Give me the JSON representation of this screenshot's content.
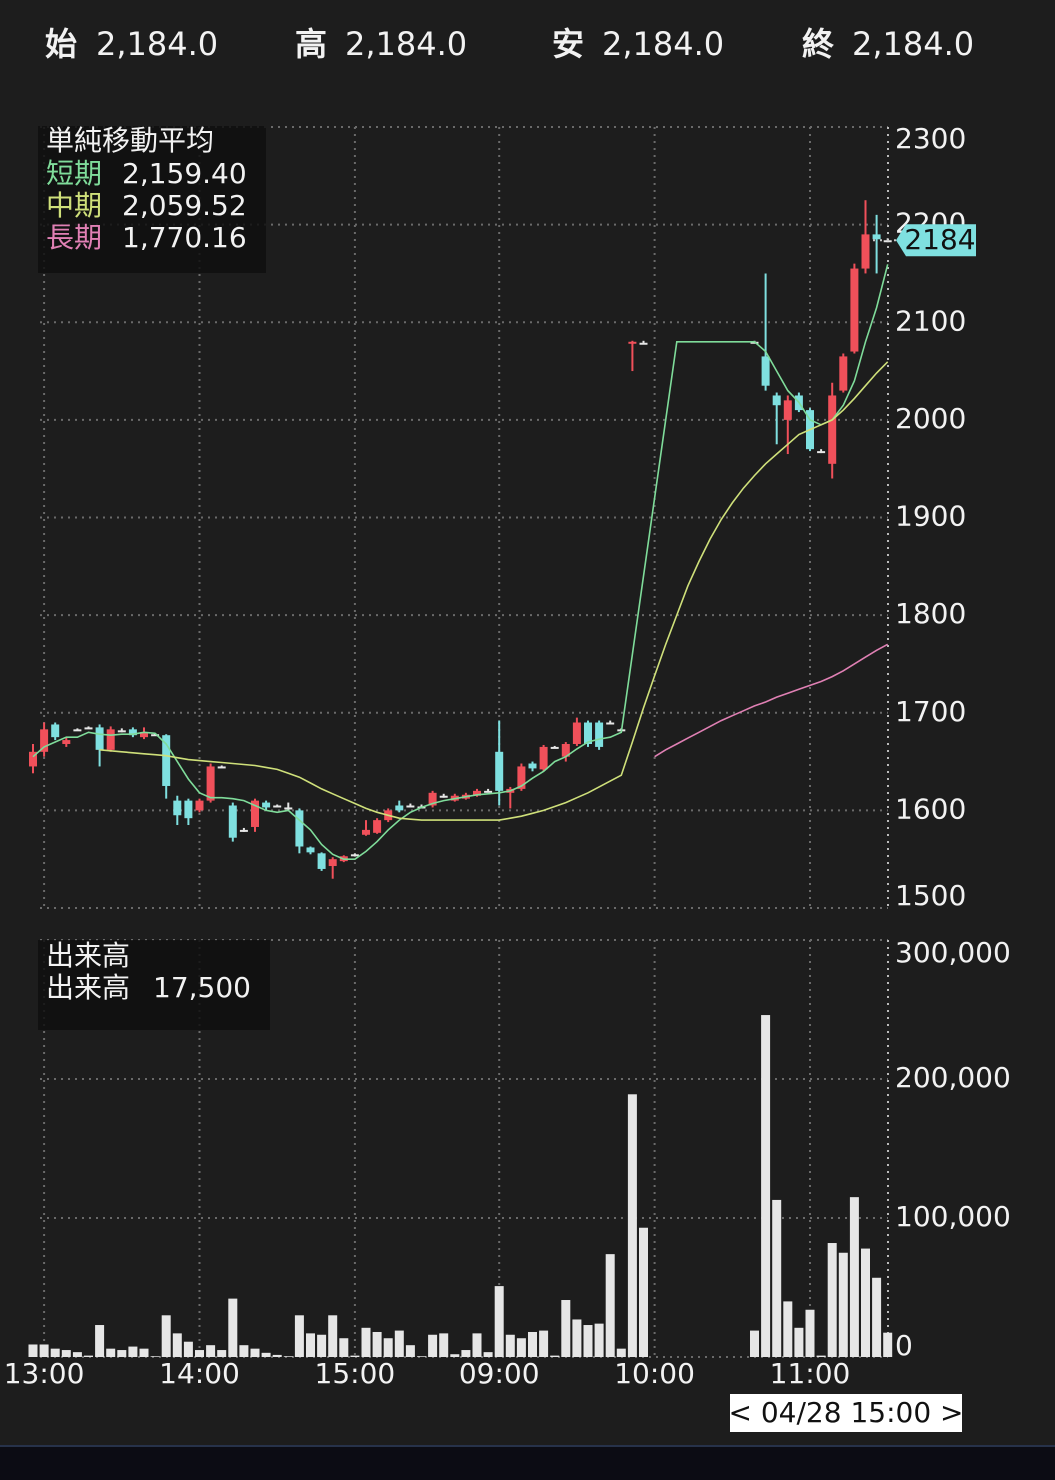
{
  "header": [
    {
      "label": "始",
      "value": "2,184.0"
    },
    {
      "label": "高",
      "value": "2,184.0"
    },
    {
      "label": "安",
      "value": "2,184.0"
    },
    {
      "label": "終",
      "value": "2,184.0"
    }
  ],
  "cursor_label": "< 04/28 15:00 >",
  "chart_data": [
    {
      "type": "candlestick",
      "title": "単純移動平均",
      "categories": [
        null,
        "13:00",
        null,
        null,
        null,
        null,
        null,
        null,
        null,
        null,
        null,
        null,
        null,
        null,
        null,
        "14:00",
        null,
        null,
        null,
        null,
        null,
        null,
        null,
        null,
        null,
        null,
        null,
        null,
        null,
        "15:00",
        null,
        null,
        null,
        null,
        null,
        null,
        null,
        null,
        null,
        null,
        null,
        null,
        "09:00",
        null,
        null,
        null,
        null,
        null,
        null,
        null,
        null,
        null,
        null,
        null,
        null,
        null,
        "10:00",
        null,
        null,
        null,
        null,
        null,
        null,
        null,
        null,
        null,
        null,
        null,
        null,
        null,
        "11:00",
        null,
        null,
        null,
        null,
        null,
        null,
        null
      ],
      "open": [
        1645,
        1660,
        1688,
        1668,
        1683,
        1685,
        1685,
        1662,
        1682,
        1683,
        1675,
        1678,
        1677,
        1610,
        1610,
        1600,
        1610,
        1645,
        1605,
        1580,
        1583,
        1608,
        1605,
        1603,
        1600,
        1562,
        1556,
        1543,
        1548,
        1555,
        1575,
        1577,
        1590,
        1605,
        1605,
        1604,
        1605,
        1615,
        1610,
        1612,
        1615,
        1620,
        1660,
        1618,
        1622,
        1648,
        1642,
        1665,
        1655,
        1668,
        1690,
        1690,
        1690,
        1683,
        2078,
        2079,
        null,
        null,
        null,
        null,
        null,
        null,
        null,
        null,
        null,
        2080,
        2065,
        2025,
        2000,
        2025,
        2010,
        1968,
        1955,
        2030,
        2070,
        2155,
        2190,
        2184
      ],
      "high": [
        1668,
        1690,
        1690,
        1675,
        1684,
        1686,
        1688,
        1686,
        1684,
        1685,
        1685,
        1679,
        1678,
        1615,
        1612,
        1612,
        1648,
        1646,
        1608,
        1582,
        1612,
        1610,
        1606,
        1608,
        1602,
        1563,
        1557,
        1552,
        1554,
        1556,
        1590,
        1592,
        1602,
        1610,
        1607,
        1606,
        1620,
        1617,
        1617,
        1618,
        1622,
        1622,
        1692,
        1624,
        1648,
        1650,
        1667,
        1666,
        1670,
        1695,
        1692,
        1692,
        1692,
        1684,
        2081,
        2081,
        null,
        null,
        null,
        null,
        null,
        null,
        null,
        null,
        null,
        2081,
        2150,
        2028,
        2025,
        2028,
        2012,
        1970,
        2038,
        2068,
        2160,
        2225,
        2210,
        2186
      ],
      "low": [
        1638,
        1655,
        1672,
        1665,
        1682,
        1684,
        1645,
        1660,
        1680,
        1675,
        1673,
        1677,
        1612,
        1585,
        1585,
        1598,
        1608,
        1644,
        1568,
        1578,
        1578,
        1600,
        1604,
        1600,
        1556,
        1555,
        1538,
        1530,
        1547,
        1554,
        1574,
        1576,
        1588,
        1598,
        1603,
        1603,
        1603,
        1613,
        1609,
        1611,
        1614,
        1619,
        1605,
        1602,
        1620,
        1640,
        1640,
        1664,
        1650,
        1666,
        1665,
        1662,
        1688,
        1682,
        2050,
        2078,
        null,
        null,
        null,
        null,
        null,
        null,
        null,
        null,
        null,
        2079,
        2030,
        1975,
        1965,
        2008,
        1968,
        1966,
        1940,
        2028,
        2068,
        2150,
        2150,
        2182
      ],
      "close": [
        1660,
        1683,
        1675,
        1672,
        1683,
        1685,
        1662,
        1683,
        1682,
        1677,
        1680,
        1678,
        1625,
        1595,
        1592,
        1610,
        1645,
        1645,
        1572,
        1580,
        1610,
        1603,
        1605,
        1603,
        1563,
        1557,
        1540,
        1550,
        1553,
        1555,
        1580,
        1590,
        1600,
        1600,
        1605,
        1604,
        1618,
        1615,
        1615,
        1616,
        1620,
        1620,
        1620,
        1622,
        1645,
        1643,
        1665,
        1665,
        1668,
        1690,
        1668,
        1665,
        1690,
        1683,
        2080,
        2079,
        null,
        null,
        null,
        null,
        null,
        null,
        null,
        null,
        null,
        2080,
        2035,
        2015,
        2020,
        2010,
        1970,
        1968,
        2025,
        2065,
        2155,
        2190,
        2185,
        2184
      ],
      "last_label": "2184",
      "up_color": "#f0505a",
      "down_color": "#7fe0e0",
      "doji_color": "#e6e6e6",
      "tag_color": "#7fe0e0",
      "ylim": [
        1500,
        2300
      ],
      "yticks": [
        1500,
        1600,
        1700,
        1800,
        1900,
        2000,
        2100,
        2200,
        2300
      ],
      "grid": true,
      "series": [
        {
          "name": "短期",
          "color": "#7fdc9a",
          "value_label": "2,159.40",
          "values": [
            1655,
            1665,
            1670,
            1675,
            1675,
            1680,
            1678,
            1677,
            1678,
            1678,
            1680,
            1679,
            1668,
            1650,
            1632,
            1618,
            1613,
            1613,
            1612,
            1610,
            1605,
            1600,
            1598,
            1600,
            1590,
            1580,
            1565,
            1555,
            1550,
            1550,
            1558,
            1568,
            1580,
            1590,
            1598,
            1603,
            1607,
            1610,
            1612,
            1614,
            1616,
            1617,
            1618,
            1620,
            1625,
            1633,
            1640,
            1650,
            1655,
            1663,
            1670,
            1673,
            1675,
            1680,
            1760,
            1840,
            1920,
            2000,
            2080,
            2080,
            2080,
            2080,
            2080,
            2080,
            2080,
            2080,
            2070,
            2050,
            2030,
            2018,
            2000,
            1995,
            2000,
            2015,
            2040,
            2080,
            2115,
            2159.4
          ]
        },
        {
          "name": "中期",
          "color": "#cfe07a",
          "value_label": "2,059.52",
          "values": [
            null,
            null,
            null,
            null,
            null,
            null,
            1662,
            1661,
            1660,
            1659,
            1658,
            1657,
            1656,
            1654,
            1652,
            1651,
            1650,
            1649,
            1648,
            1647,
            1646,
            1644,
            1642,
            1638,
            1634,
            1628,
            1622,
            1617,
            1612,
            1607,
            1602,
            1598,
            1595,
            1592,
            1591,
            1590,
            1590,
            1590,
            1590,
            1590,
            1590,
            1590,
            1590,
            1592,
            1594,
            1597,
            1600,
            1604,
            1608,
            1613,
            1618,
            1624,
            1630,
            1636,
            1670,
            1705,
            1738,
            1770,
            1800,
            1830,
            1855,
            1878,
            1898,
            1915,
            1930,
            1943,
            1955,
            1965,
            1975,
            1985,
            1990,
            1995,
            2000,
            2010,
            2022,
            2035,
            2048,
            2059.52
          ]
        },
        {
          "name": "長期",
          "color": "#e080b4",
          "value_label": "1,770.16",
          "values": [
            null,
            null,
            null,
            null,
            null,
            null,
            null,
            null,
            null,
            null,
            null,
            null,
            null,
            null,
            null,
            null,
            null,
            null,
            null,
            null,
            null,
            null,
            null,
            null,
            null,
            null,
            null,
            null,
            null,
            null,
            null,
            null,
            null,
            null,
            null,
            null,
            null,
            null,
            null,
            null,
            null,
            null,
            null,
            null,
            null,
            null,
            null,
            null,
            null,
            null,
            null,
            null,
            null,
            null,
            null,
            null,
            1655,
            1662,
            1668,
            1674,
            1680,
            1686,
            1692,
            1697,
            1702,
            1707,
            1711,
            1716,
            1720,
            1724,
            1728,
            1732,
            1737,
            1743,
            1750,
            1757,
            1764,
            1770.16
          ]
        }
      ]
    },
    {
      "type": "bar",
      "title": "出来高",
      "ylim": [
        0,
        300000
      ],
      "yticks": [
        0,
        {
          "value": 100000,
          "label": "100,000"
        },
        {
          "value": 200000,
          "label": "200,000"
        },
        {
          "value": 300000,
          "label": "300,000"
        }
      ],
      "grid": true,
      "series": [
        {
          "name": "出来高",
          "color": "#e6e6e6",
          "value_label": "17,500",
          "values": [
            9000,
            9000,
            6000,
            5000,
            3500,
            1000,
            23000,
            6000,
            5000,
            7500,
            6000,
            500,
            30000,
            17000,
            11000,
            5000,
            8500,
            5000,
            42000,
            8500,
            6000,
            3000,
            1500,
            500,
            30000,
            17000,
            16000,
            30000,
            13500,
            1000,
            21000,
            18000,
            13500,
            19000,
            8500,
            500,
            16000,
            17000,
            2000,
            5000,
            17000,
            3500,
            51000,
            16000,
            13500,
            18000,
            19000,
            1000,
            41000,
            27000,
            23000,
            24000,
            74000,
            6000,
            189000,
            93000,
            null,
            null,
            null,
            null,
            null,
            null,
            null,
            null,
            null,
            19000,
            246000,
            113000,
            40000,
            21000,
            34000,
            1000,
            82000,
            75000,
            115000,
            78000,
            57000,
            17500
          ]
        }
      ]
    }
  ]
}
